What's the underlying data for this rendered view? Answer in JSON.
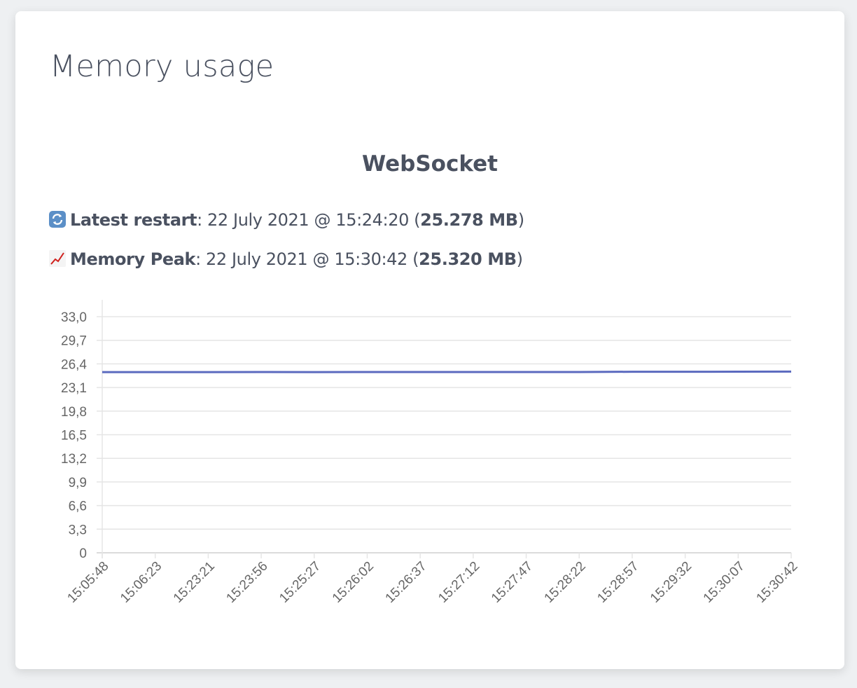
{
  "card": {
    "title": "Memory usage",
    "subtitle": "WebSocket",
    "latest_restart": {
      "icon": "refresh-icon",
      "label": "Latest restart",
      "date": ": 22 July 2021 @ 15:24:20 (",
      "value": "25.278 MB",
      "close": ")"
    },
    "memory_peak": {
      "icon": "chart-increasing-icon",
      "label": "Memory Peak",
      "date": ": 22 July 2021 @ 15:30:42 (",
      "value": "25.320 MB",
      "close": ")"
    }
  },
  "chart_data": {
    "type": "line",
    "x": [
      "15:05:48",
      "15:06:23",
      "15:23:21",
      "15:23:56",
      "15:25:27",
      "15:26:02",
      "15:26:37",
      "15:27:12",
      "15:27:47",
      "15:28:22",
      "15:28:57",
      "15:29:32",
      "15:30:07",
      "15:30:42"
    ],
    "values": [
      25.25,
      25.25,
      25.25,
      25.26,
      25.25,
      25.27,
      25.27,
      25.27,
      25.27,
      25.27,
      25.3,
      25.3,
      25.31,
      25.32
    ],
    "yticks": [
      "0",
      "3,3",
      "6,6",
      "9,9",
      "13,2",
      "16,5",
      "19,8",
      "23,1",
      "26,4",
      "29,7",
      "33,0"
    ],
    "ylim": [
      0,
      33
    ],
    "grid": true,
    "line_color": "#5b6abf",
    "grid_color": "#e5e5e5"
  }
}
